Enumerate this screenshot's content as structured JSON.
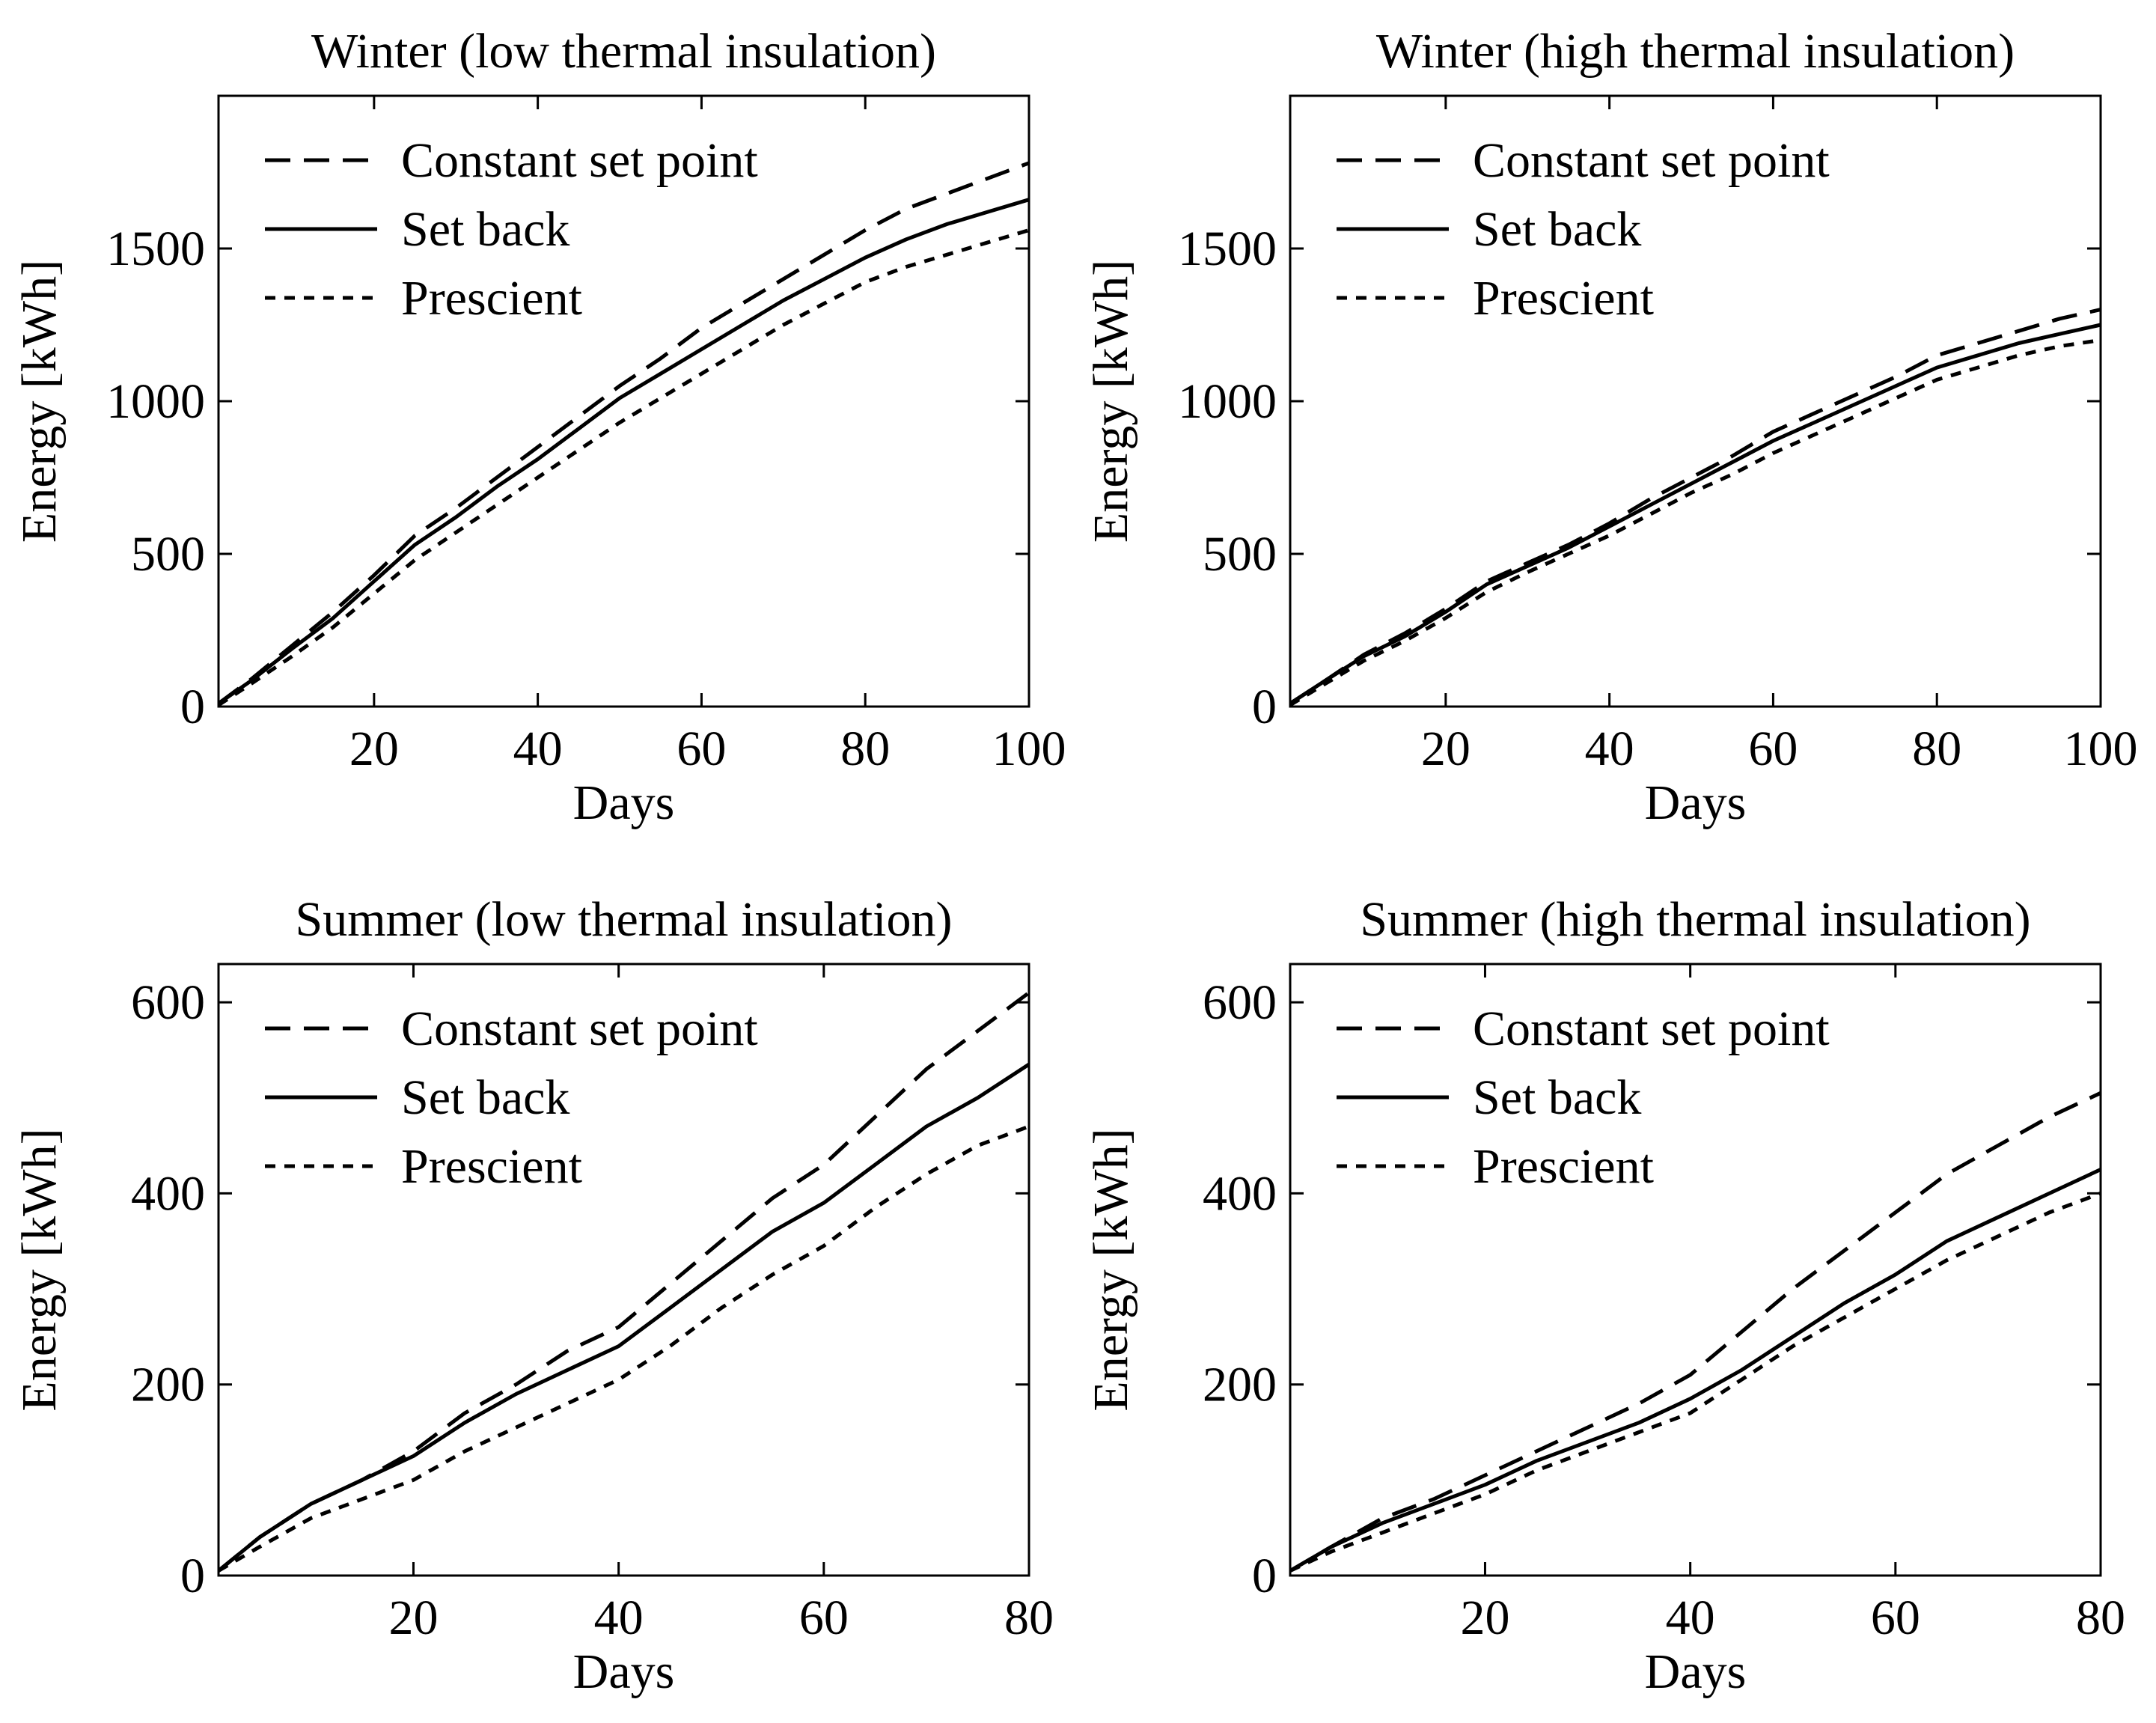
{
  "figure": {
    "colors": {
      "background": "#ffffff",
      "ink": "#000000"
    },
    "legend_labels": [
      "Constant set point",
      "Set back",
      "Prescient"
    ]
  },
  "chart_data": [
    {
      "type": "line",
      "title": "Winter (low thermal insulation)",
      "xlabel": "Days",
      "ylabel": "Energy [kWh]",
      "xlim": [
        1,
        100
      ],
      "ylim": [
        0,
        2000
      ],
      "xticks": [
        20,
        40,
        60,
        80,
        100
      ],
      "yticks": [
        0,
        500,
        1000,
        1500
      ],
      "grid": false,
      "legend": "top-left",
      "x": [
        1,
        5,
        10,
        15,
        20,
        25,
        30,
        35,
        40,
        45,
        50,
        55,
        60,
        65,
        70,
        75,
        80,
        85,
        90,
        95,
        100
      ],
      "series": [
        {
          "name": "Constant set point",
          "style": "dashed",
          "values": [
            10,
            90,
            200,
            310,
            430,
            560,
            650,
            750,
            850,
            950,
            1050,
            1140,
            1240,
            1320,
            1400,
            1480,
            1560,
            1630,
            1680,
            1730,
            1780
          ]
        },
        {
          "name": "Set back",
          "style": "solid",
          "values": [
            10,
            85,
            190,
            290,
            410,
            530,
            620,
            720,
            810,
            910,
            1010,
            1090,
            1170,
            1250,
            1330,
            1400,
            1470,
            1530,
            1580,
            1620,
            1660
          ]
        },
        {
          "name": "Prescient",
          "style": "dotted",
          "values": [
            5,
            75,
            165,
            260,
            370,
            480,
            570,
            660,
            750,
            840,
            930,
            1010,
            1090,
            1170,
            1250,
            1320,
            1390,
            1440,
            1480,
            1520,
            1560
          ]
        }
      ]
    },
    {
      "type": "line",
      "title": "Winter (high thermal insulation)",
      "xlabel": "Days",
      "ylabel": "Energy [kWh]",
      "xlim": [
        1,
        100
      ],
      "ylim": [
        0,
        2000
      ],
      "xticks": [
        20,
        40,
        60,
        80,
        100
      ],
      "yticks": [
        0,
        500,
        1000,
        1500
      ],
      "grid": false,
      "legend": "top-left",
      "x": [
        1,
        5,
        10,
        15,
        20,
        25,
        30,
        35,
        40,
        45,
        50,
        55,
        60,
        65,
        70,
        75,
        80,
        85,
        90,
        95,
        100
      ],
      "series": [
        {
          "name": "Constant set point",
          "style": "dashed",
          "values": [
            10,
            80,
            170,
            240,
            320,
            410,
            470,
            530,
            600,
            680,
            750,
            820,
            900,
            960,
            1020,
            1080,
            1150,
            1190,
            1230,
            1270,
            1300
          ]
        },
        {
          "name": "Set back",
          "style": "solid",
          "values": [
            10,
            80,
            165,
            230,
            310,
            400,
            460,
            520,
            590,
            660,
            730,
            800,
            870,
            930,
            990,
            1050,
            1110,
            1150,
            1190,
            1220,
            1250
          ]
        },
        {
          "name": "Prescient",
          "style": "dotted",
          "values": [
            5,
            70,
            150,
            215,
            290,
            375,
            440,
            500,
            560,
            630,
            700,
            760,
            830,
            890,
            950,
            1010,
            1070,
            1110,
            1150,
            1180,
            1200
          ]
        }
      ]
    },
    {
      "type": "line",
      "title": "Summer (low thermal insulation)",
      "xlabel": "Days",
      "ylabel": "Energy [kWh]",
      "xlim": [
        1,
        80
      ],
      "ylim": [
        0,
        640
      ],
      "xticks": [
        20,
        40,
        60,
        80
      ],
      "yticks": [
        0,
        200,
        400,
        600
      ],
      "grid": false,
      "legend": "top-left",
      "x": [
        1,
        5,
        10,
        15,
        20,
        25,
        30,
        35,
        40,
        45,
        50,
        55,
        60,
        65,
        70,
        75,
        80
      ],
      "series": [
        {
          "name": "Constant set point",
          "style": "dashed",
          "values": [
            5,
            40,
            75,
            100,
            130,
            170,
            200,
            235,
            260,
            305,
            350,
            395,
            430,
            480,
            530,
            570,
            610
          ]
        },
        {
          "name": "Set back",
          "style": "solid",
          "values": [
            5,
            40,
            75,
            100,
            125,
            160,
            190,
            215,
            240,
            280,
            320,
            360,
            390,
            430,
            470,
            500,
            535
          ]
        },
        {
          "name": "Prescient",
          "style": "dotted",
          "values": [
            5,
            30,
            60,
            80,
            100,
            130,
            155,
            180,
            205,
            240,
            280,
            315,
            345,
            385,
            420,
            450,
            470
          ]
        }
      ]
    },
    {
      "type": "line",
      "title": "Summer (high thermal insulation)",
      "xlabel": "Days",
      "ylabel": "Energy [kWh]",
      "xlim": [
        1,
        80
      ],
      "ylim": [
        0,
        640
      ],
      "xticks": [
        20,
        40,
        60,
        80
      ],
      "yticks": [
        0,
        200,
        400,
        600
      ],
      "grid": false,
      "legend": "top-left",
      "x": [
        1,
        5,
        10,
        15,
        20,
        25,
        30,
        35,
        40,
        45,
        50,
        55,
        60,
        65,
        70,
        75,
        80
      ],
      "series": [
        {
          "name": "Constant set point",
          "style": "dashed",
          "values": [
            5,
            30,
            60,
            80,
            105,
            130,
            155,
            180,
            210,
            255,
            300,
            340,
            380,
            420,
            450,
            480,
            505
          ]
        },
        {
          "name": "Set back",
          "style": "solid",
          "values": [
            5,
            30,
            55,
            75,
            95,
            120,
            140,
            160,
            185,
            215,
            250,
            285,
            315,
            350,
            375,
            400,
            425
          ]
        },
        {
          "name": "Prescient",
          "style": "dotted",
          "values": [
            5,
            25,
            45,
            65,
            85,
            110,
            130,
            150,
            170,
            205,
            240,
            270,
            300,
            330,
            355,
            380,
            400
          ]
        }
      ]
    }
  ]
}
